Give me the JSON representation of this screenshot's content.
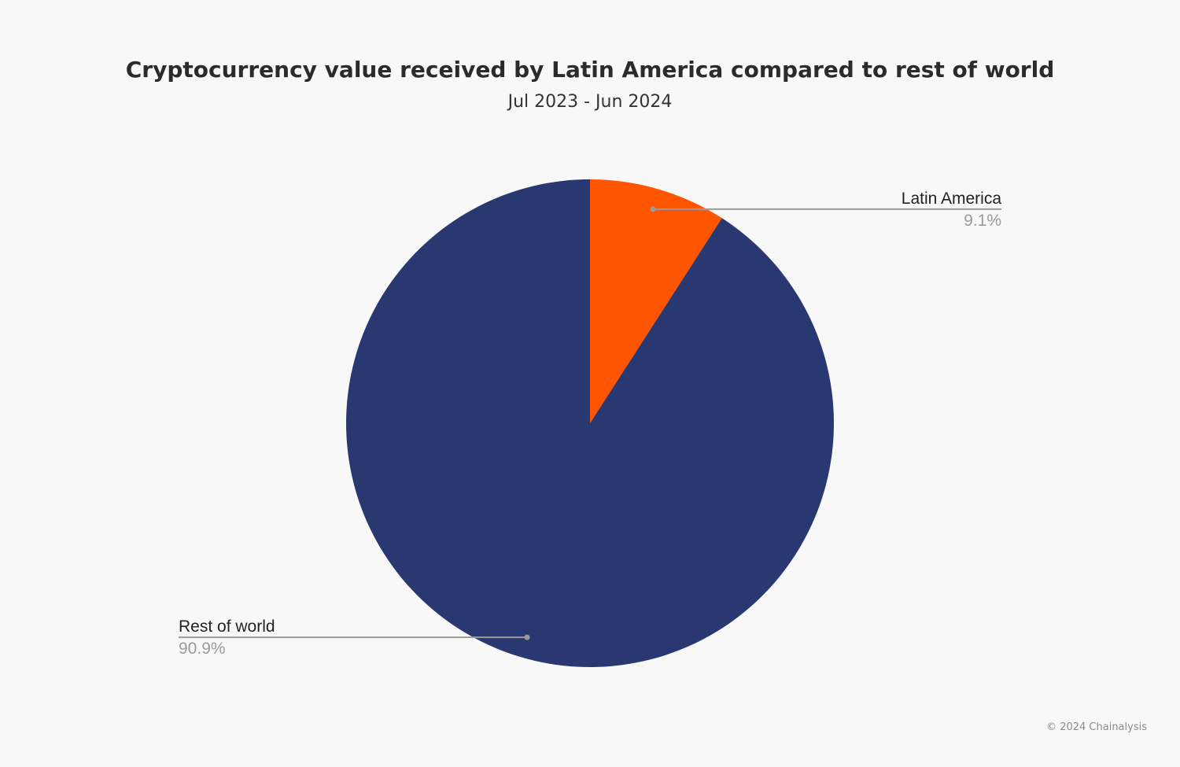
{
  "chart_data": {
    "type": "pie",
    "title": "Cryptocurrency value received by Latin America compared to rest of world",
    "subtitle": "Jul 2023 - Jun 2024",
    "slices": [
      {
        "label": "Latin America",
        "value": 9.1,
        "value_label": "9.1%",
        "color": "#ff5400"
      },
      {
        "label": "Rest of world",
        "value": 90.9,
        "value_label": "90.9%",
        "color": "#293871"
      }
    ]
  },
  "footer": {
    "credit": "© 2024 Chainalysis"
  },
  "colors": {
    "background": "#f8f8f8",
    "leader_line": "#9a9a9a",
    "label_text": "#222222",
    "percent_text": "#9a9a9a"
  }
}
